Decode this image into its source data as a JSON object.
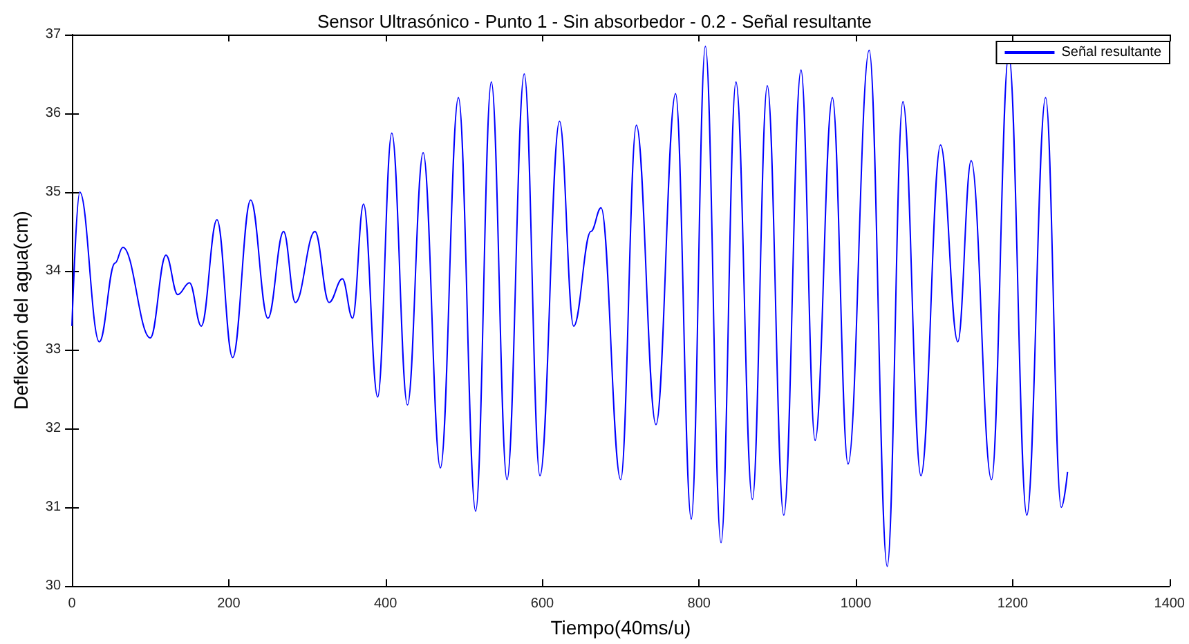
{
  "chart_data": {
    "type": "line",
    "title": "Sensor Ultrasónico - Punto 1 - Sin absorbedor - 0.2 - Señal resultante",
    "xlabel": "Tiempo(40ms/u)",
    "ylabel": "Deflexión del agua(cm)",
    "xlim": [
      0,
      1400
    ],
    "xticks": [
      0,
      200,
      400,
      600,
      800,
      1000,
      1200,
      1400
    ],
    "ylim": [
      30,
      37
    ],
    "yticks": [
      30,
      31,
      32,
      33,
      34,
      35,
      36,
      37
    ],
    "grid": false,
    "legend": "top right",
    "marker": "none",
    "line_style": "solid",
    "series": [
      {
        "name": "Señal resultante",
        "color": "#0000ff",
        "x": [
          0,
          10,
          35,
          55,
          65,
          100,
          120,
          135,
          150,
          165,
          185,
          205,
          228,
          250,
          270,
          285,
          310,
          328,
          345,
          358,
          372,
          390,
          408,
          428,
          448,
          470,
          493,
          515,
          535,
          555,
          577,
          597,
          622,
          640,
          662,
          675,
          700,
          720,
          745,
          770,
          790,
          808,
          828,
          847,
          868,
          887,
          908,
          930,
          948,
          970,
          990,
          1017,
          1040,
          1060,
          1083,
          1108,
          1130,
          1147,
          1173,
          1195,
          1218,
          1242,
          1262,
          1270
        ],
        "values": [
          33.3,
          35.0,
          33.1,
          34.1,
          34.3,
          33.15,
          34.2,
          33.7,
          33.85,
          33.3,
          34.65,
          32.9,
          34.9,
          33.4,
          34.5,
          33.6,
          34.5,
          33.6,
          33.9,
          33.4,
          34.85,
          32.4,
          35.75,
          32.3,
          35.5,
          31.5,
          36.2,
          30.95,
          36.4,
          31.35,
          36.5,
          31.4,
          35.9,
          33.3,
          34.5,
          34.8,
          31.35,
          35.85,
          32.05,
          36.25,
          30.85,
          36.85,
          30.55,
          36.4,
          31.1,
          36.35,
          30.9,
          36.55,
          31.85,
          36.2,
          31.55,
          36.8,
          30.25,
          36.15,
          31.4,
          35.6,
          33.1,
          35.4,
          31.35,
          36.75,
          30.9,
          36.2,
          31.0,
          31.45
        ]
      }
    ]
  }
}
